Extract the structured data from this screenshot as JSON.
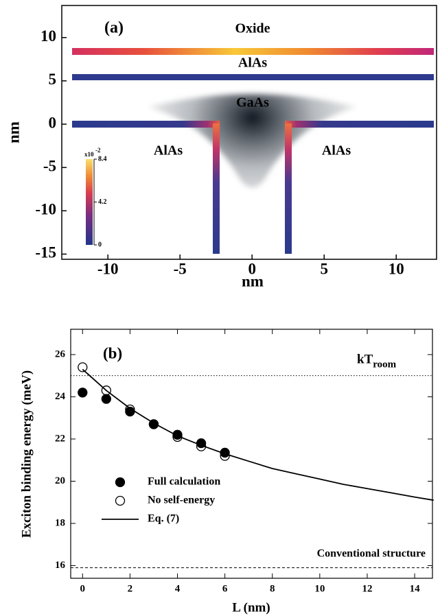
{
  "chart_data": [
    {
      "type": "structure",
      "label": "(a)",
      "xlabel": "nm",
      "ylabel": "nm",
      "xlim": [
        -13.2,
        12.8
      ],
      "xticks": [
        -10,
        -5,
        0,
        5,
        10
      ],
      "ylim": [
        -15.6,
        13.7
      ],
      "yticks": [
        -15,
        -10,
        -5,
        0,
        5,
        10
      ],
      "regions": [
        "Oxide",
        "AlAs",
        "GaAs",
        "AlAs",
        "AlAs"
      ],
      "colorbar": {
        "clim": [
          0,
          8.4
        ],
        "ticks": [
          0,
          4.2,
          8.4
        ],
        "multiplier": "x10",
        "exponent": "-2"
      }
    },
    {
      "type": "line",
      "label": "(b)",
      "xlabel": "L (nm)",
      "ylabel": "Exciton binding energy (meV)",
      "xlim": [
        -0.5,
        14.75
      ],
      "xticks": [
        0,
        2,
        4,
        6,
        8,
        10,
        12,
        14
      ],
      "ylim": [
        15.4,
        27.2
      ],
      "yticks": [
        16,
        18,
        20,
        22,
        24,
        26
      ],
      "hlines": [
        {
          "value": 25,
          "style": "dotted",
          "label": "kT",
          "subscript": "room"
        },
        {
          "value": 15.9,
          "style": "dashed",
          "label": "Conventional structure"
        }
      ],
      "series": [
        {
          "name": "Full calculation",
          "marker": "filled",
          "color": "#000000",
          "x": [
            0,
            1,
            2,
            3,
            4,
            5,
            6
          ],
          "values": [
            24.2,
            23.9,
            23.3,
            22.7,
            22.2,
            21.8,
            21.35
          ]
        },
        {
          "name": "No self-energy",
          "marker": "open",
          "color": "#000000",
          "x": [
            0,
            1,
            2,
            3,
            4,
            5,
            6
          ],
          "values": [
            25.4,
            24.3,
            23.4,
            22.7,
            22.1,
            21.65,
            21.2
          ]
        },
        {
          "name": "Eq. (7)",
          "marker": "none",
          "color": "#000000",
          "x": [
            0,
            1,
            2,
            3,
            4,
            5,
            6,
            7,
            8,
            9,
            10,
            11,
            12,
            13,
            14,
            14.8
          ],
          "values": [
            25.3,
            24.3,
            23.45,
            22.75,
            22.15,
            21.7,
            21.3,
            20.95,
            20.6,
            20.35,
            20.1,
            19.85,
            19.65,
            19.45,
            19.25,
            19.1
          ]
        }
      ]
    }
  ]
}
